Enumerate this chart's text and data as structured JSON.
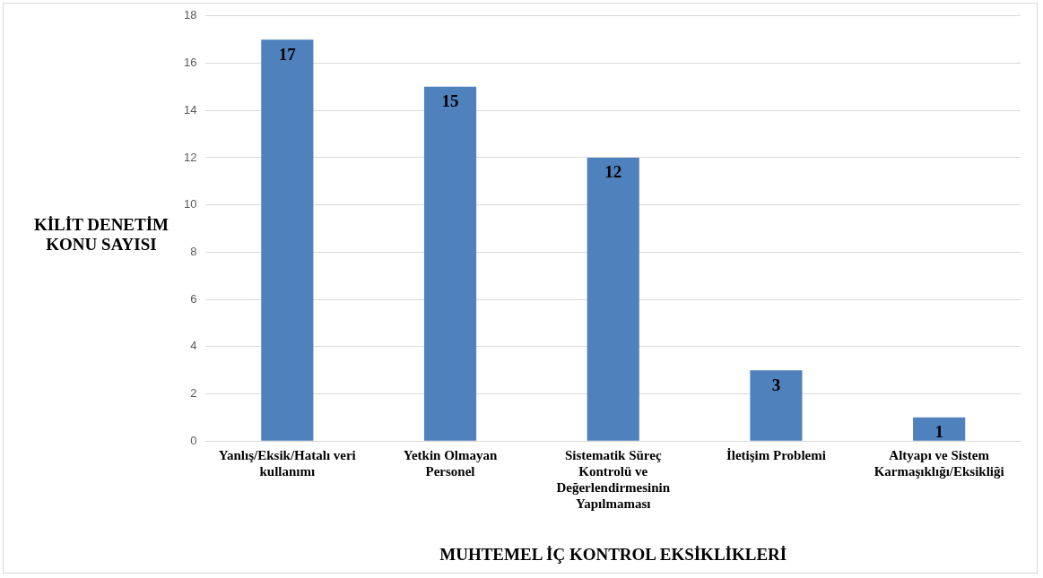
{
  "chart_data": {
    "type": "bar",
    "xlabel": "MUHTEMEL İÇ KONTROL EKSİKLİKLERİ",
    "ylabel": "KİLİT DENETİM KONU SAYISI",
    "categories": [
      "Yanlış/Eksik/Hatalı veri kullanımı",
      "Yetkin Olmayan Personel",
      "Sistematik Süreç Kontrolü ve Değerlendirmesinin Yapılmaması",
      "İletişim Problemi",
      "Altyapı ve Sistem Karmaşıklığı/Eksikliği"
    ],
    "values": [
      17,
      15,
      12,
      3,
      1
    ],
    "color": "#4f81bd",
    "ylim": [
      0,
      18
    ],
    "yticks": [
      0,
      2,
      4,
      6,
      8,
      10,
      12,
      14,
      16,
      18
    ],
    "grid": "y",
    "data_labels": true,
    "legend": false
  }
}
